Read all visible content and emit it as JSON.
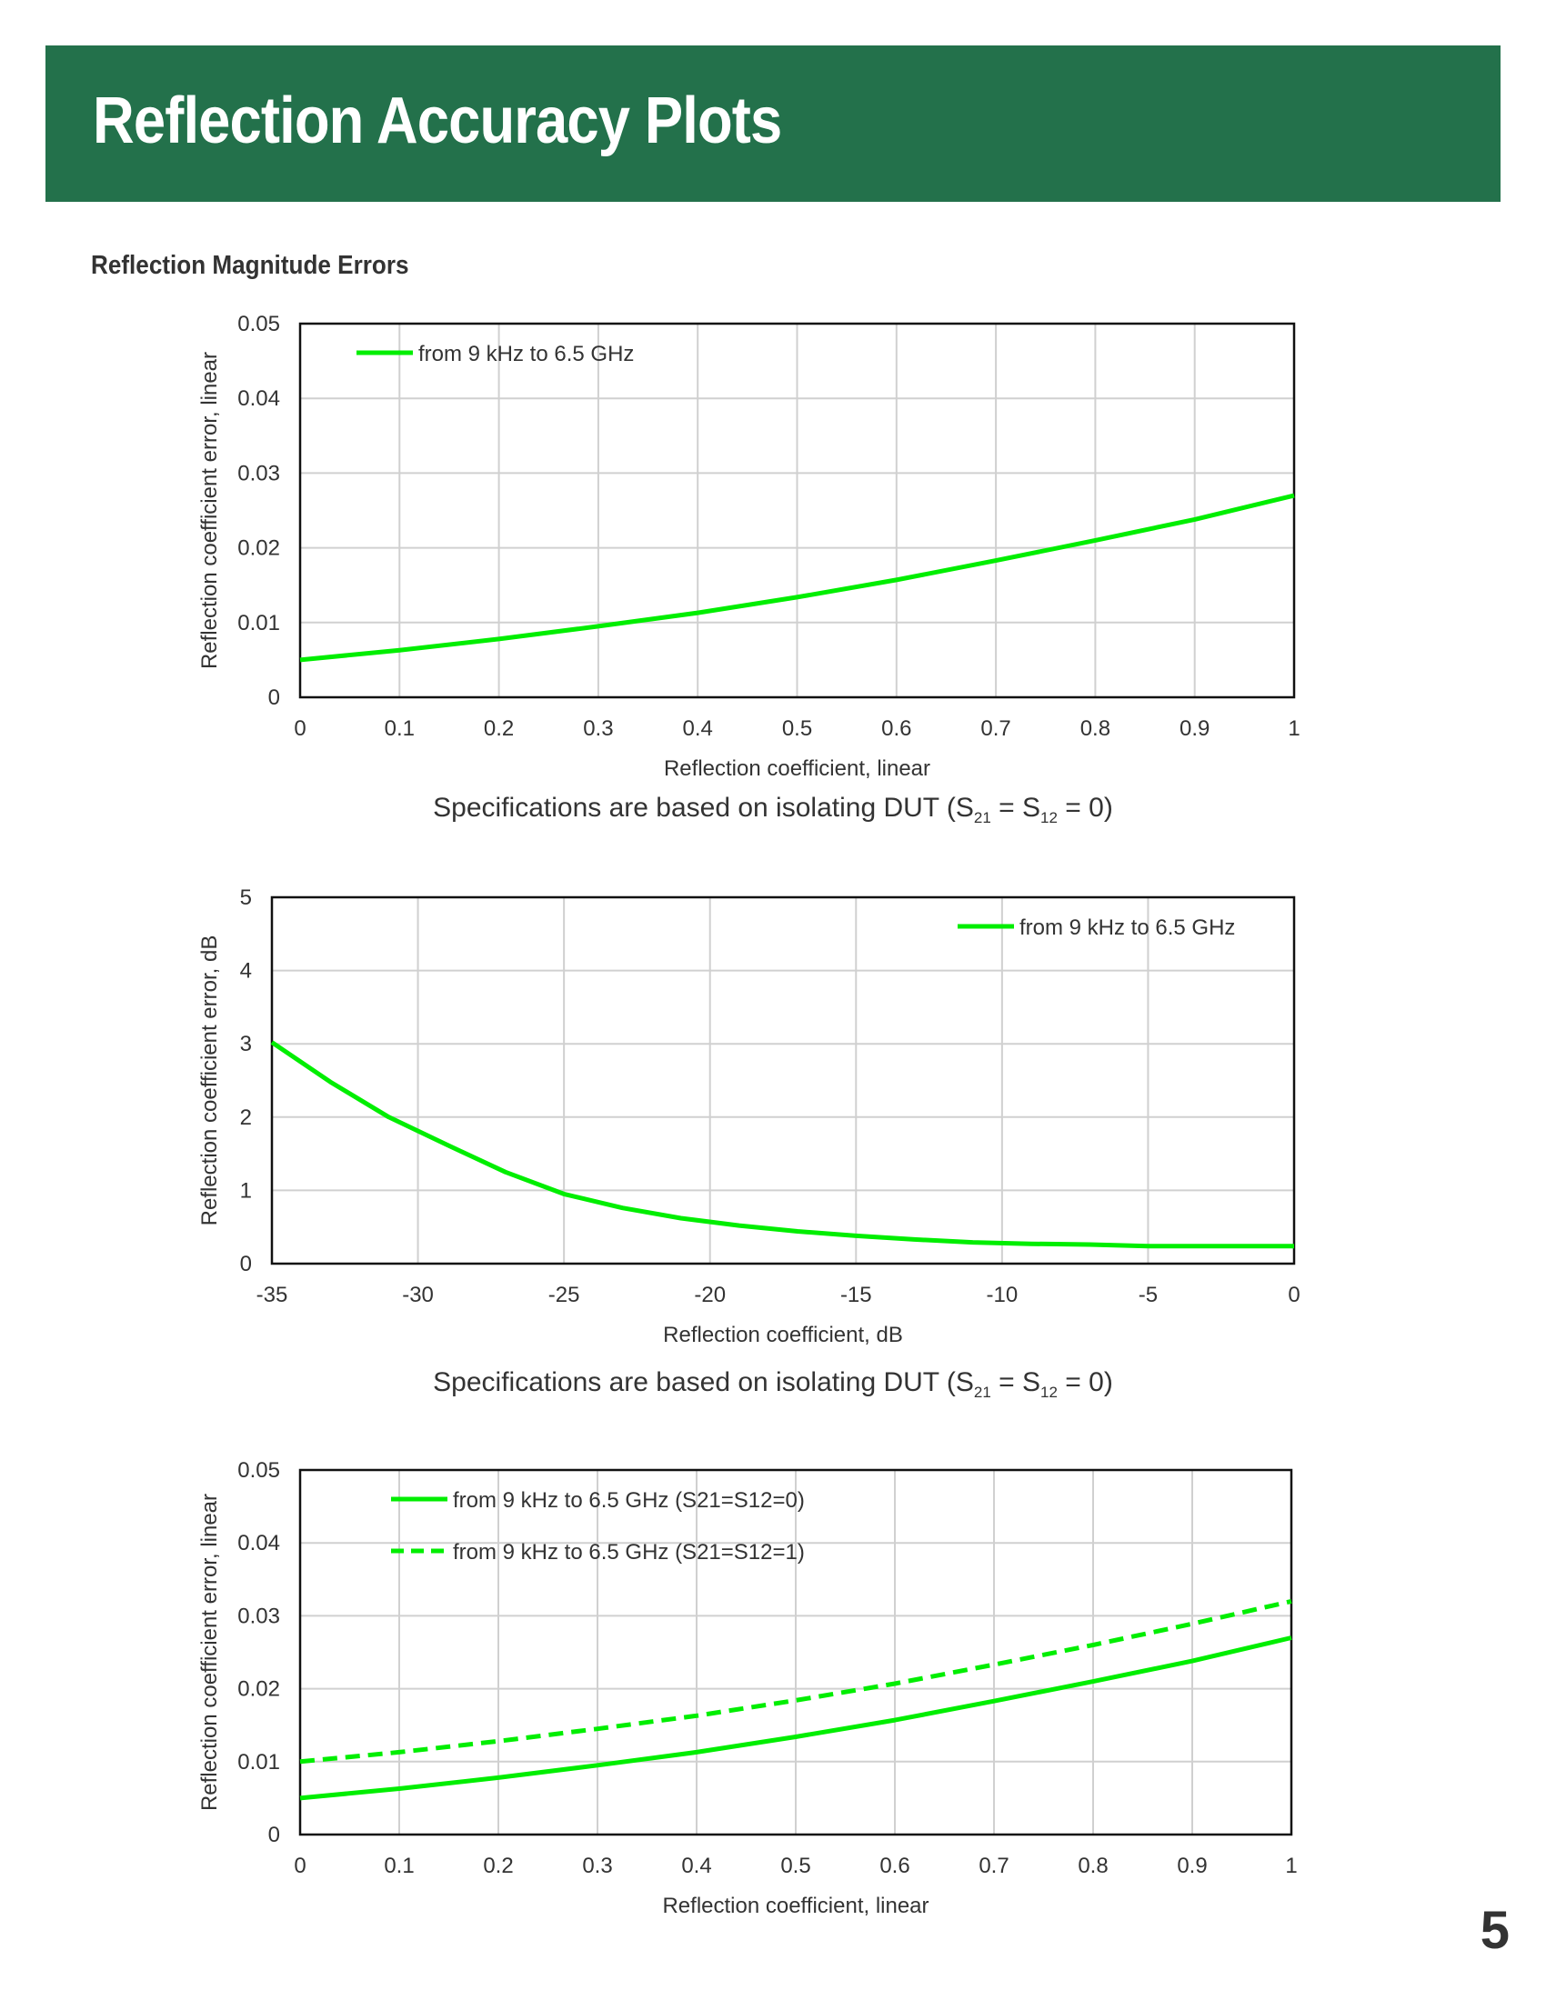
{
  "header": {
    "title": "Reflection Accuracy Plots",
    "section_heading": "Reflection Magnitude Errors",
    "banner_color": "#23714b"
  },
  "notes": {
    "spec_text": "Specifications are based on isolating DUT (S",
    "spec_sub_1": "21",
    "spec_mid": " = S",
    "spec_sub_2": "12",
    "spec_end": " = 0)"
  },
  "page_number": "5",
  "chart_data": [
    {
      "type": "line",
      "title": "",
      "xlabel": "Reflection coefficient, linear",
      "ylabel": "Reflection coefficient error, linear",
      "xlim": [
        0,
        1
      ],
      "ylim": [
        0,
        0.05
      ],
      "x_ticks": [
        "0",
        "0.1",
        "0.2",
        "0.3",
        "0.4",
        "0.5",
        "0.6",
        "0.7",
        "0.8",
        "0.9",
        "1"
      ],
      "y_ticks": [
        "0",
        "0.01",
        "0.02",
        "0.03",
        "0.04",
        "0.05"
      ],
      "grid": true,
      "legend_position": "top-left",
      "series": [
        {
          "name": "from 9 kHz to 6.5 GHz",
          "color": "#00ee00",
          "dashed": false,
          "x": [
            0,
            0.1,
            0.2,
            0.3,
            0.4,
            0.5,
            0.6,
            0.7,
            0.8,
            0.9,
            1
          ],
          "y": [
            0.005,
            0.0063,
            0.0078,
            0.0095,
            0.0113,
            0.0134,
            0.0157,
            0.0183,
            0.021,
            0.0238,
            0.027
          ]
        }
      ]
    },
    {
      "type": "line",
      "title": "",
      "xlabel": "Reflection coefficient, dB",
      "ylabel": "Reflection coefficient error, dB",
      "xlim": [
        -35,
        0
      ],
      "ylim": [
        0,
        5
      ],
      "x_ticks": [
        "-35",
        "-30",
        "-25",
        "-20",
        "-15",
        "-10",
        "-5",
        "0"
      ],
      "y_ticks": [
        "0",
        "1",
        "2",
        "3",
        "4",
        "5"
      ],
      "grid": true,
      "legend_position": "top-right",
      "series": [
        {
          "name": "from 9 kHz to 6.5 GHz",
          "color": "#00ee00",
          "dashed": false,
          "x": [
            -35,
            -33,
            -31,
            -29,
            -27,
            -25,
            -23,
            -21,
            -19,
            -17,
            -15,
            -13,
            -11,
            -9,
            -7,
            -5,
            -3,
            -1,
            0
          ],
          "y": [
            3.02,
            2.48,
            2.0,
            1.62,
            1.25,
            0.95,
            0.76,
            0.62,
            0.52,
            0.44,
            0.38,
            0.33,
            0.29,
            0.27,
            0.26,
            0.24,
            0.24,
            0.24,
            0.24
          ]
        }
      ]
    },
    {
      "type": "line",
      "title": "",
      "xlabel": "Reflection coefficient, linear",
      "ylabel": "Reflection coefficient error, linear",
      "xlim": [
        0,
        1
      ],
      "ylim": [
        0,
        0.05
      ],
      "x_ticks": [
        "0",
        "0.1",
        "0.2",
        "0.3",
        "0.4",
        "0.5",
        "0.6",
        "0.7",
        "0.8",
        "0.9",
        "1"
      ],
      "y_ticks": [
        "0",
        "0.01",
        "0.02",
        "0.03",
        "0.04",
        "0.05"
      ],
      "grid": true,
      "legend_position": "top-left",
      "series": [
        {
          "name": "from 9 kHz to 6.5 GHz (S21=S12=0)",
          "color": "#00ee00",
          "dashed": false,
          "x": [
            0,
            0.1,
            0.2,
            0.3,
            0.4,
            0.5,
            0.6,
            0.7,
            0.8,
            0.9,
            1
          ],
          "y": [
            0.005,
            0.0063,
            0.0078,
            0.0095,
            0.0113,
            0.0134,
            0.0157,
            0.0183,
            0.021,
            0.0238,
            0.027
          ]
        },
        {
          "name": "from 9 kHz to 6.5 GHz (S21=S12=1)",
          "color": "#00ee00",
          "dashed": true,
          "x": [
            0,
            0.1,
            0.2,
            0.3,
            0.4,
            0.5,
            0.6,
            0.7,
            0.8,
            0.9,
            1
          ],
          "y": [
            0.01,
            0.0113,
            0.0128,
            0.0145,
            0.0163,
            0.0184,
            0.0207,
            0.0233,
            0.026,
            0.0289,
            0.032
          ]
        }
      ]
    }
  ]
}
